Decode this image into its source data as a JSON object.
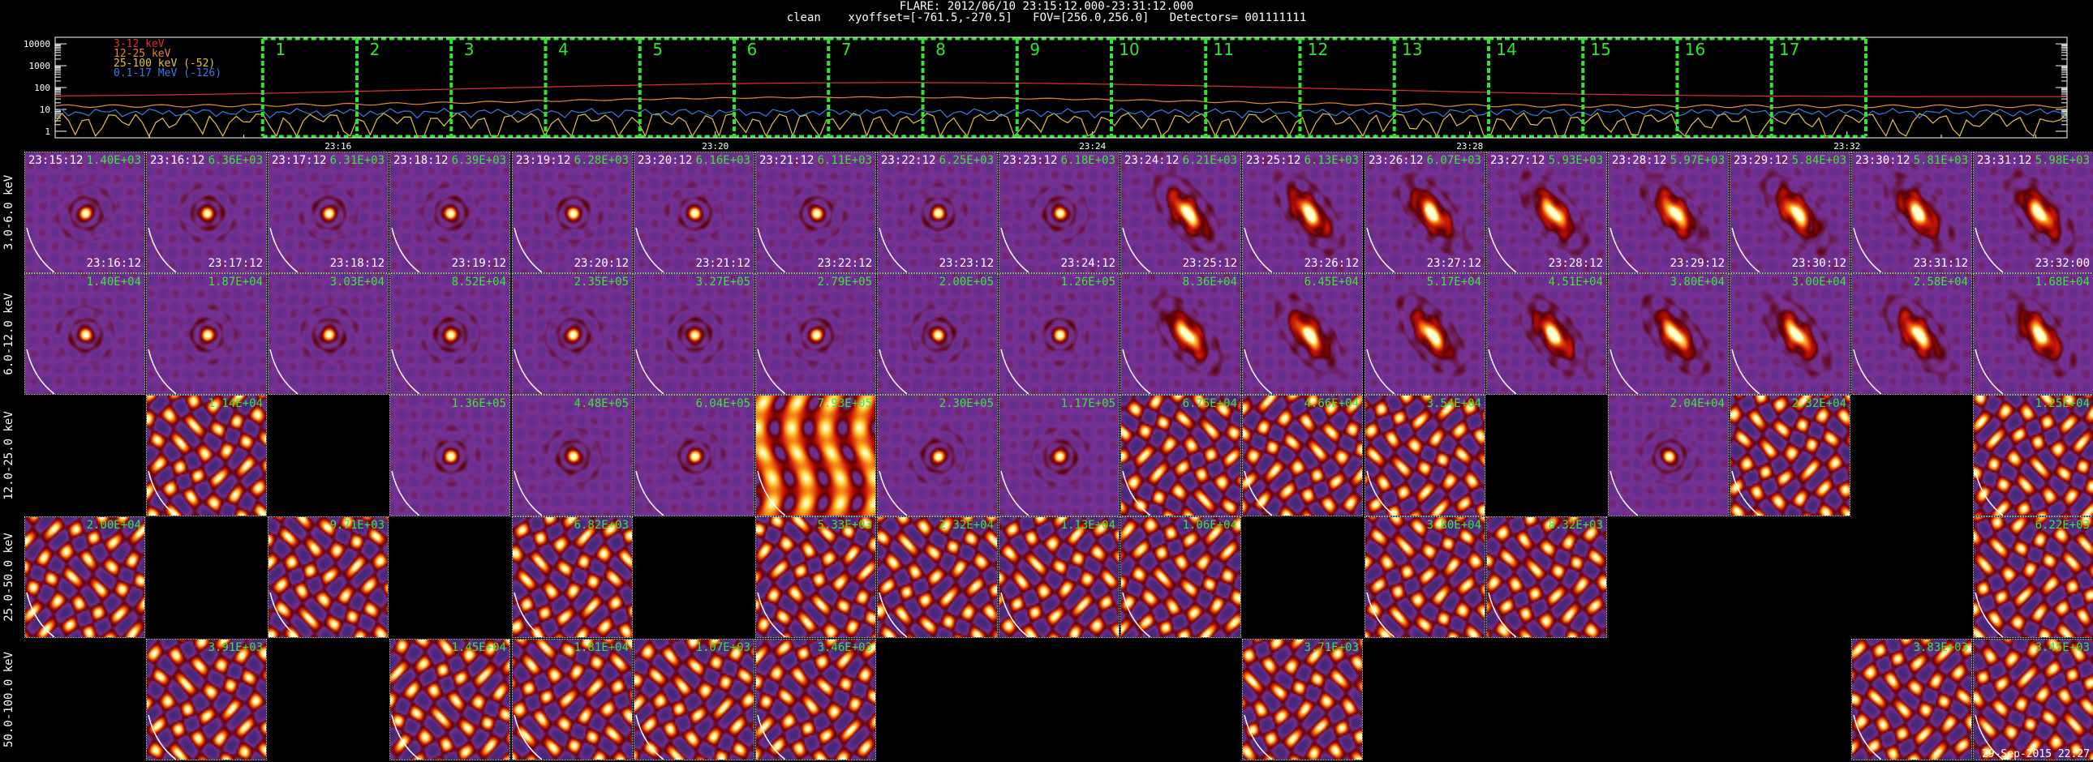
{
  "header": {
    "line1": "FLARE: 2012/06/10 23:15:12.000-23:31:12.000",
    "line2": "clean    xyoffset=[-761.5,-270.5]   FOV=[256.0,256.0]   Detectors= 001111111"
  },
  "lightcurve": {
    "y_ticks": [
      "10000",
      "1000",
      "100",
      "10",
      "1"
    ],
    "x_ticks": [
      "23:16",
      "23:20",
      "23:24",
      "23:28",
      "23:32"
    ],
    "legend": [
      {
        "label": "3-12 keV",
        "color": "#e23030"
      },
      {
        "label": "12-25 keV",
        "color": "#e88a2a"
      },
      {
        "label": "25-100 keV (-52)",
        "color": "#e8c43a"
      },
      {
        "label": "0.1-17 MeV (-126)",
        "color": "#3a7ae8"
      }
    ],
    "intervals": [
      "1",
      "2",
      "3",
      "4",
      "5",
      "6",
      "7",
      "8",
      "9",
      "10",
      "11",
      "12",
      "13",
      "14",
      "15",
      "16",
      "17"
    ],
    "interval_color": "#2ee62e"
  },
  "energy_bands": [
    "3.0-6.0 keV",
    "6.0-12.0 keV",
    "12.0-25.0 keV",
    "25.0-50.0 keV",
    "50.0-100.0 keV"
  ],
  "time_starts": [
    "23:15:12",
    "23:16:12",
    "23:17:12",
    "23:18:12",
    "23:19:12",
    "23:20:12",
    "23:21:12",
    "23:22:12",
    "23:23:12",
    "23:24:12",
    "23:25:12",
    "23:26:12",
    "23:27:12",
    "23:28:12",
    "23:29:12",
    "23:30:12",
    "23:31:12"
  ],
  "time_ends": [
    "23:16:12",
    "23:17:12",
    "23:18:12",
    "23:19:12",
    "23:20:12",
    "23:21:12",
    "23:22:12",
    "23:23:12",
    "23:24:12",
    "23:25:12",
    "23:26:12",
    "23:27:12",
    "23:28:12",
    "23:29:12",
    "23:30:12",
    "23:31:12",
    "23:32:00"
  ],
  "max_values": [
    [
      "1.40E+03",
      "6.36E+03",
      "6.31E+03",
      "6.39E+03",
      "6.28E+03",
      "6.16E+03",
      "6.11E+03",
      "6.25E+03",
      "6.18E+03",
      "6.21E+03",
      "6.13E+03",
      "6.07E+03",
      "5.93E+03",
      "5.97E+03",
      "5.84E+03",
      "5.81E+03",
      "5.98E+03"
    ],
    [
      "1.40E+04",
      "1.87E+04",
      "3.03E+04",
      "8.52E+04",
      "2.35E+05",
      "3.27E+05",
      "2.79E+05",
      "2.00E+05",
      "1.26E+05",
      "8.36E+04",
      "6.45E+04",
      "5.17E+04",
      "4.51E+04",
      "3.80E+04",
      "3.00E+04",
      "2.58E+04",
      "1.68E+04"
    ],
    [
      "",
      "1.14E+04",
      "",
      "1.36E+05",
      "4.48E+05",
      "6.04E+05",
      "7.93E+05",
      "2.30E+05",
      "1.17E+05",
      "6.75E+04",
      "4.66E+04",
      "3.54E+04",
      "",
      "2.04E+04",
      "2.32E+04",
      "",
      "1.25E+04"
    ],
    [
      "2.00E+04",
      "",
      "9.71E+03",
      "",
      "6.82E+03",
      "",
      "5.33E+03",
      "2.32E+04",
      "1.13E+04",
      "1.06E+04",
      "",
      "3.80E+04",
      "8.32E+03",
      "",
      "",
      "",
      "6.22E+03"
    ],
    [
      "",
      "3.91E+03",
      "",
      "1.45E+04",
      "1.81E+04",
      "1.07E+03",
      "3.46E+03",
      "",
      "",
      "",
      "3.71E+03",
      "",
      "",
      "",
      "",
      "3.83E+03",
      "3.45E+03"
    ]
  ],
  "footer": {
    "timestamp": "29-Sep-2015 22:27"
  }
}
